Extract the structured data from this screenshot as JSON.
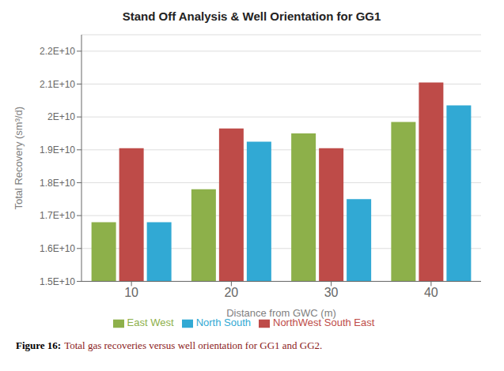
{
  "chart_data": {
    "type": "bar",
    "title": "Stand Off Analysis & Well Orientation for GG1",
    "xlabel": "Distance from GWC (m)",
    "ylabel": "Total Recovery (sm³/d)",
    "categories": [
      10,
      20,
      30,
      40
    ],
    "series": [
      {
        "name": "East West",
        "color": "#8DB04A",
        "values": [
          16800000000.0,
          17800000000.0,
          19500000000.0,
          19850000000.0
        ]
      },
      {
        "name": "NorthWest  South East",
        "color": "#BE4B48",
        "values": [
          19050000000.0,
          19650000000.0,
          19050000000.0,
          21050000000.0
        ]
      },
      {
        "name": "North South",
        "color": "#31A9D4",
        "values": [
          16800000000.0,
          19250000000.0,
          17500000000.0,
          20350000000.0
        ]
      }
    ],
    "ylim": [
      15000000000.0,
      22500000000.0
    ],
    "yticks": [
      {
        "value": 15000000000.0,
        "label": "1.5E+10"
      },
      {
        "value": 16000000000.0,
        "label": "1.6E+10"
      },
      {
        "value": 17000000000.0,
        "label": "1.7E+10"
      },
      {
        "value": 18000000000.0,
        "label": "1.8E+10"
      },
      {
        "value": 19000000000.0,
        "label": "1.9E+10"
      },
      {
        "value": 20000000000.0,
        "label": "2E+10"
      },
      {
        "value": 21000000000.0,
        "label": "2.1E+10"
      },
      {
        "value": 22000000000.0,
        "label": "2.2E+10"
      }
    ],
    "grid": true,
    "legend": "bottom",
    "annotations": [
      {
        "text": "Figure 16:"
      },
      {
        "text": "Total gas recoveries versus well orientation for GG1 and GG2.",
        "color": "#8B1A1A"
      }
    ]
  }
}
